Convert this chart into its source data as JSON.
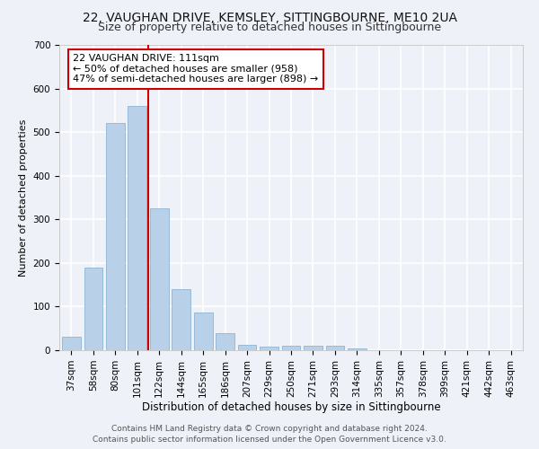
{
  "title1": "22, VAUGHAN DRIVE, KEMSLEY, SITTINGBOURNE, ME10 2UA",
  "title2": "Size of property relative to detached houses in Sittingbourne",
  "xlabel": "Distribution of detached houses by size in Sittingbourne",
  "ylabel": "Number of detached properties",
  "categories": [
    "37sqm",
    "58sqm",
    "80sqm",
    "101sqm",
    "122sqm",
    "144sqm",
    "165sqm",
    "186sqm",
    "207sqm",
    "229sqm",
    "250sqm",
    "271sqm",
    "293sqm",
    "314sqm",
    "335sqm",
    "357sqm",
    "378sqm",
    "399sqm",
    "421sqm",
    "442sqm",
    "463sqm"
  ],
  "values": [
    30,
    190,
    520,
    560,
    325,
    140,
    87,
    40,
    13,
    8,
    10,
    10,
    10,
    5,
    0,
    0,
    0,
    0,
    0,
    0,
    0
  ],
  "bar_color": "#b8d0e8",
  "bar_edge_color": "#90b4d4",
  "red_line_color": "#cc0000",
  "annotation_text1": "22 VAUGHAN DRIVE: 111sqm",
  "annotation_text2": "← 50% of detached houses are smaller (958)",
  "annotation_text3": "47% of semi-detached houses are larger (898) →",
  "ylim": [
    0,
    700
  ],
  "yticks": [
    0,
    100,
    200,
    300,
    400,
    500,
    600,
    700
  ],
  "footer1": "Contains HM Land Registry data © Crown copyright and database right 2024.",
  "footer2": "Contains public sector information licensed under the Open Government Licence v3.0.",
  "bg_color": "#eef2f8",
  "grid_color": "#ffffff",
  "annotation_box_color": "#ffffff",
  "annotation_box_edge": "#cc0000",
  "title1_fontsize": 10,
  "title2_fontsize": 9,
  "xlabel_fontsize": 8.5,
  "ylabel_fontsize": 8,
  "tick_fontsize": 7.5,
  "annotation_fontsize": 8,
  "footer_fontsize": 6.5
}
